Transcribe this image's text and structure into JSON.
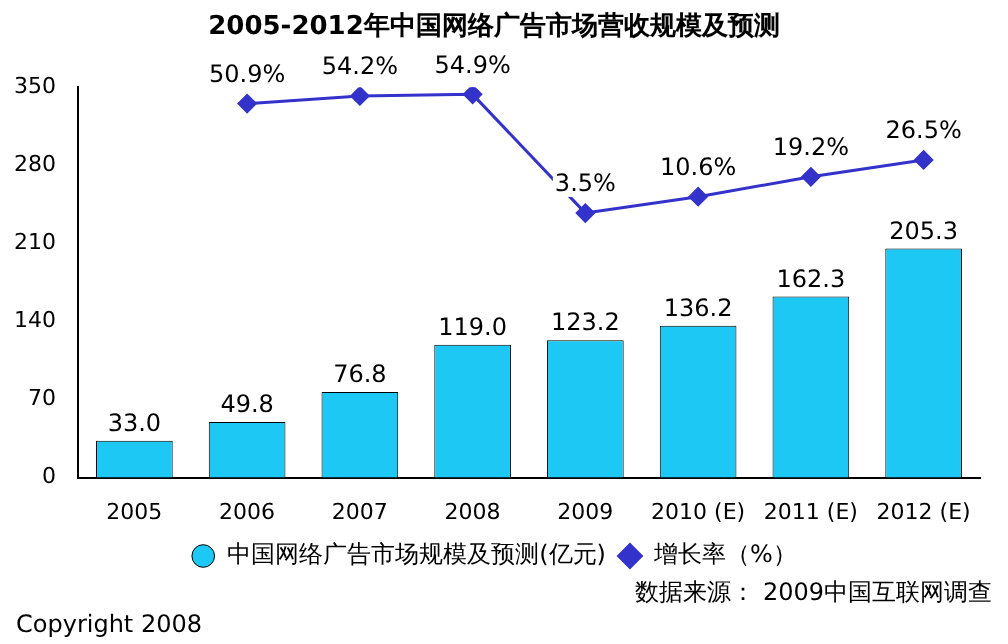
{
  "chart_data": {
    "type": "bar",
    "title": "2005-2012年中国网络广告市场营收规模及预测",
    "categories": [
      "2005",
      "2006",
      "2007",
      "2008",
      "2009",
      "2010 (E)",
      "2011 (E)",
      "2012 (E)"
    ],
    "series": [
      {
        "name": "中国网络广告市场规模及预测(亿元)",
        "color": "#1ec8f5",
        "values": [
          33.0,
          49.8,
          76.8,
          119.0,
          123.2,
          136.2,
          162.3,
          205.3
        ],
        "value_labels": [
          "33.0",
          "49.8",
          "76.8",
          "119.0",
          "123.2",
          "136.2",
          "162.3",
          "205.3"
        ]
      },
      {
        "name": "增长率（%）",
        "type": "line",
        "axis": "y2",
        "color": "#3333cc",
        "values": [
          null,
          50.9,
          54.2,
          54.9,
          3.5,
          10.6,
          19.2,
          26.5
        ],
        "value_labels": [
          null,
          "50.9%",
          "54.2%",
          "54.9%",
          "3.5%",
          "10.6%",
          "19.2%",
          "26.5%"
        ]
      }
    ],
    "ylim": [
      0,
      350
    ],
    "yticks": [
      0,
      70,
      140,
      210,
      280,
      350
    ],
    "y2lim": [
      -111,
      58
    ],
    "tick_labels": "x y",
    "grid": false,
    "legend": "bottom",
    "marker": "diamond",
    "annotations": [
      "数据来源： 2009中国互联网调查",
      "Copyright 2008"
    ]
  }
}
